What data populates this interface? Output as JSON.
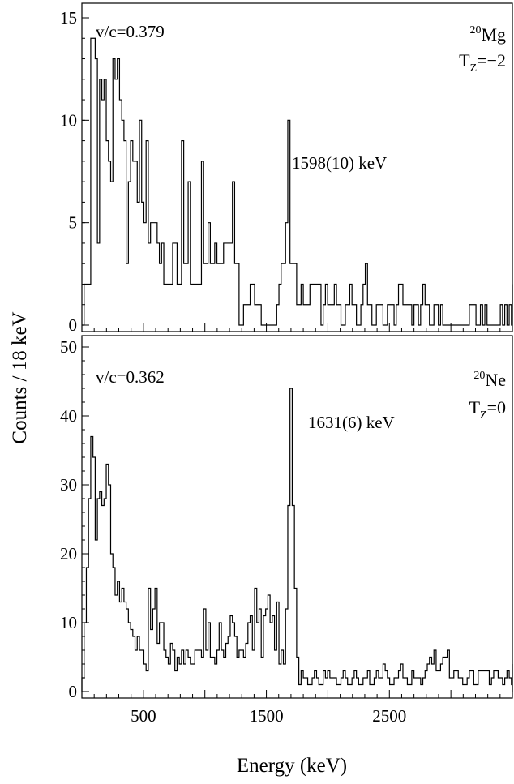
{
  "chart_data": [
    {
      "type": "histogram",
      "panel": "top",
      "nucleus_mass": "20",
      "nucleus_symbol": "Mg",
      "tz_label": "T",
      "tz_sub": "Z",
      "tz_value": "=−2",
      "velocity_label": "v/c=0.379",
      "peak_label": "1598(10) keV",
      "peak_energy_keV": 1598,
      "bin_width_keV": 18,
      "xlim": [
        0,
        3500
      ],
      "ylim": [
        0,
        16.5
      ],
      "yticks": [
        0,
        5,
        10,
        15
      ],
      "y_tick_labels": [
        "0",
        "5",
        "10",
        "15"
      ],
      "x_start_keV": 0,
      "counts": [
        0,
        2,
        2,
        2,
        14,
        14,
        13,
        4,
        12,
        11,
        12,
        9,
        8,
        7,
        13,
        12,
        13,
        11,
        10,
        9,
        3,
        7,
        9,
        8,
        8,
        6,
        10,
        6,
        5,
        9,
        4,
        5,
        5,
        5,
        4,
        3,
        4,
        2,
        2,
        2,
        2,
        4,
        4,
        2,
        2,
        9,
        3,
        3,
        7,
        2,
        2,
        2,
        2,
        2,
        8,
        3,
        3,
        5,
        3,
        3,
        4,
        3,
        3,
        3,
        4,
        4,
        4,
        4,
        7,
        3,
        3,
        0,
        0,
        1,
        1,
        1,
        2,
        2,
        1,
        1,
        1,
        0,
        0,
        0,
        0,
        0,
        0,
        0,
        1,
        2,
        3,
        3,
        5,
        10,
        3,
        3,
        3,
        1,
        1,
        2,
        1,
        1,
        1,
        2,
        2,
        2,
        2,
        2,
        0,
        1,
        2,
        1,
        1,
        1,
        2,
        1,
        1,
        0,
        0,
        1,
        1,
        2,
        1,
        1,
        0,
        0,
        1,
        2,
        3,
        1,
        1,
        0,
        0,
        1,
        1,
        1,
        0,
        0,
        1,
        1,
        1,
        0,
        1,
        2,
        2,
        1,
        1,
        1,
        1,
        0,
        1,
        1,
        0,
        1,
        2,
        1,
        1,
        0,
        0,
        1,
        1,
        0,
        1,
        0,
        0,
        0,
        0,
        0,
        0,
        0,
        0,
        0,
        0,
        0,
        0,
        1,
        1,
        1,
        0,
        0,
        1,
        0,
        1,
        0,
        0,
        0,
        0,
        0,
        0,
        1,
        0,
        1,
        0,
        1,
        0,
        0,
        1,
        0,
        0,
        0,
        0,
        0,
        0,
        0,
        0,
        0,
        0,
        0,
        0,
        1,
        0,
        0,
        2,
        2,
        0,
        0,
        0,
        1,
        1,
        1,
        1
      ]
    },
    {
      "type": "histogram",
      "panel": "bottom",
      "nucleus_mass": "20",
      "nucleus_symbol": "Ne",
      "tz_label": "T",
      "tz_sub": "Z",
      "tz_value": "=0",
      "velocity_label": "v/c=0.362",
      "peak_label": "1631(6) keV",
      "peak_energy_keV": 1631,
      "bin_width_keV": 18,
      "xlim": [
        0,
        3500
      ],
      "ylim": [
        -1,
        52
      ],
      "yticks": [
        0,
        10,
        20,
        30,
        40,
        50
      ],
      "y_tick_labels": [
        "0",
        "10",
        "20",
        "30",
        "40",
        "50"
      ],
      "x_start_keV": 0,
      "counts": [
        2,
        10,
        18,
        28,
        37,
        34,
        22,
        28,
        29,
        27,
        28,
        33,
        30,
        20,
        18,
        14,
        16,
        13,
        15,
        13,
        12,
        10,
        9,
        8,
        6,
        8,
        6,
        6,
        4,
        3,
        15,
        9,
        12,
        15,
        7,
        10,
        10,
        6,
        5,
        4,
        7,
        6,
        3,
        5,
        4,
        6,
        4,
        6,
        5,
        4,
        4,
        6,
        6,
        6,
        5,
        12,
        6,
        10,
        5,
        5,
        4,
        6,
        10,
        6,
        5,
        7,
        8,
        11,
        10,
        8,
        5,
        6,
        6,
        5,
        7,
        10,
        11,
        6,
        15,
        10,
        12,
        5,
        11,
        12,
        14,
        10,
        11,
        6,
        13,
        4,
        6,
        4,
        12,
        27,
        44,
        27,
        15,
        5,
        1,
        3,
        2,
        2,
        1,
        1,
        2,
        3,
        2,
        1,
        1,
        3,
        2,
        3,
        2,
        2,
        2,
        1,
        1,
        2,
        3,
        2,
        1,
        1,
        2,
        3,
        2,
        1,
        1,
        2,
        2,
        3,
        1,
        1,
        2,
        3,
        2,
        2,
        4,
        3,
        2,
        1,
        1,
        2,
        2,
        3,
        4,
        2,
        2,
        1,
        1,
        3,
        2,
        2,
        2,
        1,
        2,
        3,
        4,
        5,
        4,
        6,
        3,
        3,
        4,
        5,
        5,
        6,
        2,
        2,
        3,
        3,
        2,
        2,
        1,
        1,
        2,
        3,
        3,
        1,
        1,
        3,
        3,
        3,
        3,
        3,
        1,
        2,
        3,
        3,
        2,
        2,
        1,
        2,
        3,
        2,
        1,
        2,
        4,
        2,
        1,
        1,
        3,
        2,
        1,
        2,
        3,
        3,
        1,
        2,
        3,
        2,
        1,
        1,
        1,
        0,
        0
      ]
    }
  ],
  "shared": {
    "y_axis_label": "Counts / 18 keV",
    "x_axis_label": "Energy (keV)",
    "x_tick_labels": [
      {
        "value": 500,
        "label": "500"
      },
      {
        "value": 1500,
        "label": "1500"
      },
      {
        "value": 2500,
        "label": "2500"
      }
    ]
  }
}
